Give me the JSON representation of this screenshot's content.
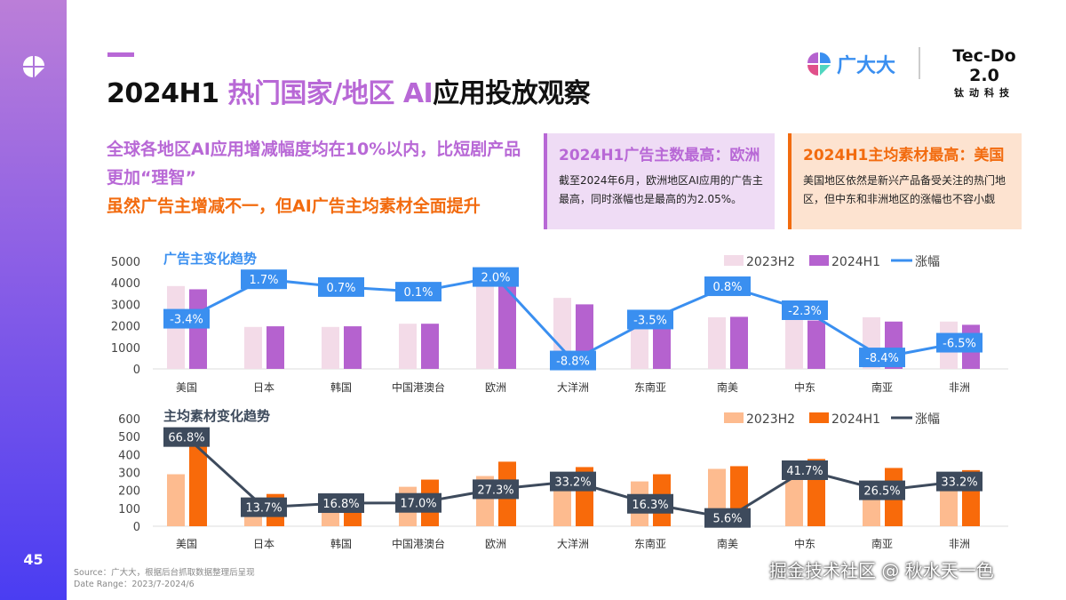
{
  "page_number": "45",
  "header": {
    "title_black_1": "2024H1 ",
    "title_purple": "热门国家/地区 AI",
    "title_black_2": "应用投放观察",
    "brand_name": "广大大",
    "partner_name": "Tec-Do 2.0",
    "partner_sub": "钛动科技"
  },
  "lead": {
    "line1": "全球各地区AI应用增减幅度均在10%以内，比短剧产品更加“理智”",
    "line2": "虽然广告主增减不一，但AI广告主均素材全面提升"
  },
  "boxes": [
    {
      "title": "2024H1广告主数最高：欧洲",
      "body": "截至2024年6月，欧洲地区AI应用的广告主最高，同时涨幅也是最高的为2.05%。"
    },
    {
      "title": "2024H1主均素材最高：美国",
      "body": "美国地区依然是新兴产品备受关注的热门地区，但中东和非洲地区的涨幅也不容小觑"
    }
  ],
  "footer": {
    "source": "Source：广大大，根据后台抓取数据整理后呈现",
    "date_range": "Date Range：2023/7-2024/6",
    "watermark": "掘金技术社区 @ 秋水天一色"
  },
  "chart_data": [
    {
      "type": "bar",
      "title": "广告主变化趋势",
      "categories": [
        "美国",
        "日本",
        "韩国",
        "中国港澳台",
        "欧洲",
        "大洋洲",
        "东南亚",
        "南美",
        "中东",
        "南亚",
        "非洲"
      ],
      "yticks": [
        "0",
        "1000",
        "2000",
        "3000",
        "4000",
        "5000"
      ],
      "ylim": [
        0,
        5000
      ],
      "legend": [
        "2023H2",
        "2024H1",
        "涨幅"
      ],
      "legend_position": "top-right",
      "colors": {
        "h2": "#f3dbe8",
        "h1": "#b562cf",
        "line": "#3a8ff0"
      },
      "series": [
        {
          "name": "2023H2",
          "values": [
            3850,
            1950,
            1950,
            2100,
            4000,
            3300,
            2700,
            2400,
            2300,
            2400,
            2200
          ]
        },
        {
          "name": "2024H1",
          "values": [
            3700,
            1980,
            1980,
            2100,
            4250,
            3000,
            2600,
            2420,
            2250,
            2200,
            2050
          ]
        }
      ],
      "growth": {
        "name": "涨幅",
        "values": [
          -3.4,
          1.7,
          0.7,
          0.1,
          2.0,
          -8.8,
          -3.5,
          0.8,
          -2.3,
          -8.4,
          -6.5
        ],
        "labels": [
          "-3.4%",
          "1.7%",
          "0.7%",
          "0.1%",
          "2.0%",
          "-8.8%",
          "-3.5%",
          "0.8%",
          "-2.3%",
          "-8.4%",
          "-6.5%"
        ]
      }
    },
    {
      "type": "bar",
      "title": "主均素材变化趋势",
      "categories": [
        "美国",
        "日本",
        "韩国",
        "中国港澳台",
        "欧洲",
        "大洋洲",
        "东南亚",
        "南美",
        "中东",
        "南亚",
        "非洲"
      ],
      "yticks": [
        "0",
        "100",
        "200",
        "300",
        "400",
        "500",
        "600"
      ],
      "ylim": [
        0,
        600
      ],
      "legend": [
        "2023H2",
        "2024H1",
        "涨幅"
      ],
      "legend_position": "top-right",
      "colors": {
        "h2": "#fdbb8f",
        "h1": "#f86a0a",
        "line": "#3d4a5c"
      },
      "series": [
        {
          "name": "2023H2",
          "values": [
            290,
            160,
            150,
            220,
            280,
            250,
            250,
            320,
            360,
            255,
            235
          ]
        },
        {
          "name": "2024H1",
          "values": [
            480,
            180,
            170,
            260,
            360,
            330,
            290,
            335,
            375,
            325,
            313
          ]
        }
      ],
      "growth": {
        "name": "涨幅",
        "values": [
          66.8,
          13.7,
          16.8,
          17.0,
          27.3,
          33.2,
          16.3,
          5.6,
          41.7,
          26.5,
          33.2
        ],
        "labels": [
          "66.8%",
          "13.7%",
          "16.8%",
          "17.0%",
          "27.3%",
          "33.2%",
          "16.3%",
          "5.6%",
          "41.7%",
          "26.5%",
          "33.2%"
        ]
      }
    }
  ]
}
